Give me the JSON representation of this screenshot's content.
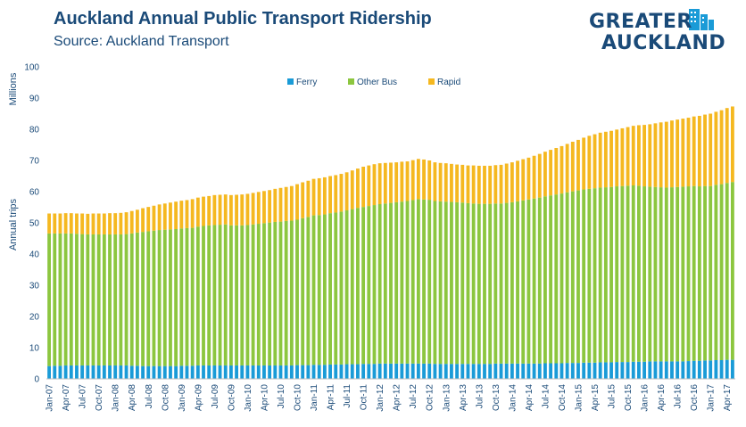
{
  "title": "Auckland Annual Public Transport Ridership",
  "subtitle": "Source: Auckland Transport",
  "logo": {
    "line1": "GREATER",
    "line2": "AUCKLAND"
  },
  "colors": {
    "ferry": "#1a9bd7",
    "other_bus": "#8cc63f",
    "rapid": "#f5b820",
    "text": "#1a4a78"
  },
  "chart_data": {
    "type": "bar",
    "stacked": true,
    "xlabel": "",
    "ylabel_top": "Millions",
    "ylabel": "Annual trips",
    "ylim": [
      0,
      100
    ],
    "yticks": [
      0,
      10,
      20,
      30,
      40,
      50,
      60,
      70,
      80,
      90,
      100
    ],
    "grid": false,
    "legend": "top-center",
    "categories": [
      "Jan-07",
      "Feb-07",
      "Mar-07",
      "Apr-07",
      "May-07",
      "Jun-07",
      "Jul-07",
      "Aug-07",
      "Sep-07",
      "Oct-07",
      "Nov-07",
      "Dec-07",
      "Jan-08",
      "Feb-08",
      "Mar-08",
      "Apr-08",
      "May-08",
      "Jun-08",
      "Jul-08",
      "Aug-08",
      "Sep-08",
      "Oct-08",
      "Nov-08",
      "Dec-08",
      "Jan-09",
      "Feb-09",
      "Mar-09",
      "Apr-09",
      "May-09",
      "Jun-09",
      "Jul-09",
      "Aug-09",
      "Sep-09",
      "Oct-09",
      "Nov-09",
      "Dec-09",
      "Jan-10",
      "Feb-10",
      "Mar-10",
      "Apr-10",
      "May-10",
      "Jun-10",
      "Jul-10",
      "Aug-10",
      "Sep-10",
      "Oct-10",
      "Nov-10",
      "Dec-10",
      "Jan-11",
      "Feb-11",
      "Mar-11",
      "Apr-11",
      "May-11",
      "Jun-11",
      "Jul-11",
      "Aug-11",
      "Sep-11",
      "Oct-11",
      "Nov-11",
      "Dec-11",
      "Jan-12",
      "Feb-12",
      "Mar-12",
      "Apr-12",
      "May-12",
      "Jun-12",
      "Jul-12",
      "Aug-12",
      "Sep-12",
      "Oct-12",
      "Nov-12",
      "Dec-12",
      "Jan-13",
      "Feb-13",
      "Mar-13",
      "Apr-13",
      "May-13",
      "Jun-13",
      "Jul-13",
      "Aug-13",
      "Sep-13",
      "Oct-13",
      "Nov-13",
      "Dec-13",
      "Jan-14",
      "Feb-14",
      "Mar-14",
      "Apr-14",
      "May-14",
      "Jun-14",
      "Jul-14",
      "Aug-14",
      "Sep-14",
      "Oct-14",
      "Nov-14",
      "Dec-14",
      "Jan-15",
      "Feb-15",
      "Mar-15",
      "Apr-15",
      "May-15",
      "Jun-15",
      "Jul-15",
      "Aug-15",
      "Sep-15",
      "Oct-15",
      "Nov-15",
      "Dec-15",
      "Jan-16",
      "Feb-16",
      "Mar-16",
      "Apr-16",
      "May-16",
      "Jun-16",
      "Jul-16",
      "Aug-16",
      "Sep-16",
      "Oct-16",
      "Nov-16",
      "Dec-16",
      "Jan-17",
      "Feb-17",
      "Mar-17",
      "Apr-17",
      "May-17"
    ],
    "xtick_labels": [
      "Jan-07",
      "Apr-07",
      "Jul-07",
      "Oct-07",
      "Jan-08",
      "Apr-08",
      "Jul-08",
      "Oct-08",
      "Jan-09",
      "Apr-09",
      "Jul-09",
      "Oct-09",
      "Jan-10",
      "Apr-10",
      "Jul-10",
      "Oct-10",
      "Jan-11",
      "Apr-11",
      "Jul-11",
      "Oct-11",
      "Jan-12",
      "Apr-12",
      "Jul-12",
      "Oct-12",
      "Jan-13",
      "Apr-13",
      "Jul-13",
      "Oct-13",
      "Jan-14",
      "Apr-14",
      "Jul-14",
      "Oct-14",
      "Jan-15",
      "Apr-15",
      "Jul-15",
      "Oct-15",
      "Jan-16",
      "Apr-16",
      "Jul-16",
      "Oct-16",
      "Jan-17",
      "Apr-17"
    ],
    "series": [
      {
        "name": "Ferry",
        "key": "ferry",
        "values": [
          4.1,
          4.2,
          4.2,
          4.3,
          4.3,
          4.3,
          4.3,
          4.3,
          4.3,
          4.3,
          4.3,
          4.3,
          4.3,
          4.3,
          4.3,
          4.2,
          4.2,
          4.1,
          4.1,
          4.1,
          4.1,
          4.1,
          4.1,
          4.1,
          4.2,
          4.2,
          4.2,
          4.3,
          4.3,
          4.3,
          4.3,
          4.3,
          4.3,
          4.3,
          4.3,
          4.3,
          4.3,
          4.3,
          4.3,
          4.3,
          4.3,
          4.3,
          4.3,
          4.3,
          4.3,
          4.4,
          4.4,
          4.4,
          4.5,
          4.5,
          4.5,
          4.6,
          4.6,
          4.6,
          4.7,
          4.7,
          4.7,
          4.8,
          4.8,
          4.8,
          4.9,
          4.9,
          4.9,
          4.9,
          4.9,
          4.9,
          4.9,
          4.9,
          4.9,
          4.9,
          4.8,
          4.8,
          4.8,
          4.8,
          4.8,
          4.8,
          4.8,
          4.8,
          4.8,
          4.8,
          4.8,
          4.9,
          4.9,
          4.9,
          4.9,
          4.9,
          4.9,
          4.9,
          4.9,
          4.9,
          5.0,
          5.0,
          5.0,
          5.0,
          5.1,
          5.1,
          5.1,
          5.2,
          5.2,
          5.2,
          5.3,
          5.3,
          5.3,
          5.4,
          5.4,
          5.4,
          5.5,
          5.5,
          5.5,
          5.6,
          5.6,
          5.6,
          5.6,
          5.6,
          5.6,
          5.6,
          5.7,
          5.8,
          5.8,
          5.9,
          5.9,
          6.0,
          6.0,
          6.1,
          6.1
        ]
      },
      {
        "name": "Other Bus",
        "key": "other_bus",
        "values": [
          42.5,
          42.4,
          42.4,
          42.3,
          42.3,
          42.2,
          42.1,
          42.0,
          42.0,
          42.0,
          42.0,
          42.0,
          42.0,
          42.0,
          42.1,
          42.4,
          42.7,
          43.0,
          43.2,
          43.4,
          43.6,
          43.7,
          43.8,
          43.9,
          44.0,
          44.1,
          44.2,
          44.5,
          44.7,
          44.9,
          45.0,
          45.1,
          45.2,
          44.9,
          44.9,
          44.9,
          45.0,
          45.2,
          45.4,
          45.6,
          45.8,
          46.0,
          46.1,
          46.3,
          46.4,
          46.6,
          47.1,
          47.5,
          47.9,
          48.0,
          48.2,
          48.5,
          48.7,
          49.0,
          49.3,
          49.7,
          50.1,
          50.3,
          50.6,
          50.9,
          51.1,
          51.3,
          51.5,
          51.7,
          51.9,
          52.1,
          52.4,
          52.7,
          52.6,
          52.5,
          52.2,
          52.1,
          52.0,
          51.9,
          51.8,
          51.7,
          51.5,
          51.4,
          51.3,
          51.3,
          51.3,
          51.3,
          51.3,
          51.5,
          51.7,
          52.0,
          52.3,
          52.6,
          52.9,
          53.2,
          53.5,
          53.8,
          54.1,
          54.4,
          54.7,
          55.0,
          55.3,
          55.5,
          55.7,
          55.9,
          56.0,
          56.1,
          56.2,
          56.3,
          56.4,
          56.5,
          56.5,
          56.4,
          56.2,
          56.0,
          55.9,
          55.8,
          55.7,
          55.8,
          55.9,
          56.0,
          56.0,
          56.0,
          55.9,
          55.9,
          55.9,
          56.2,
          56.4,
          56.7,
          57.0
        ]
      },
      {
        "name": "Rapid",
        "key": "rapid",
        "values": [
          6.4,
          6.4,
          6.4,
          6.5,
          6.5,
          6.5,
          6.6,
          6.6,
          6.7,
          6.7,
          6.7,
          6.8,
          6.8,
          6.9,
          7.0,
          7.2,
          7.3,
          7.6,
          7.8,
          8.0,
          8.2,
          8.4,
          8.6,
          8.8,
          8.9,
          9.0,
          9.2,
          9.3,
          9.4,
          9.4,
          9.6,
          9.6,
          9.6,
          9.7,
          9.8,
          9.9,
          10.0,
          10.1,
          10.2,
          10.3,
          10.4,
          10.6,
          10.8,
          10.9,
          11.1,
          11.4,
          11.5,
          11.6,
          11.7,
          11.8,
          11.9,
          11.9,
          12.0,
          12.1,
          12.2,
          12.4,
          12.6,
          12.9,
          13.0,
          13.1,
          13.1,
          13.0,
          12.9,
          12.8,
          12.8,
          12.7,
          12.8,
          12.9,
          12.8,
          12.6,
          12.4,
          12.3,
          12.3,
          12.2,
          12.1,
          12.1,
          12.1,
          12.2,
          12.2,
          12.2,
          12.2,
          12.3,
          12.4,
          12.6,
          12.8,
          13.0,
          13.2,
          13.4,
          13.7,
          14.0,
          14.3,
          14.6,
          14.9,
          15.2,
          15.5,
          15.9,
          16.2,
          16.6,
          17.0,
          17.3,
          17.6,
          17.8,
          18.0,
          18.2,
          18.5,
          18.8,
          19.1,
          19.4,
          19.7,
          20.0,
          20.4,
          20.8,
          21.1,
          21.4,
          21.6,
          21.8,
          22.0,
          22.3,
          22.6,
          22.9,
          23.2,
          23.4,
          23.7,
          24.0,
          24.2
        ]
      }
    ]
  }
}
